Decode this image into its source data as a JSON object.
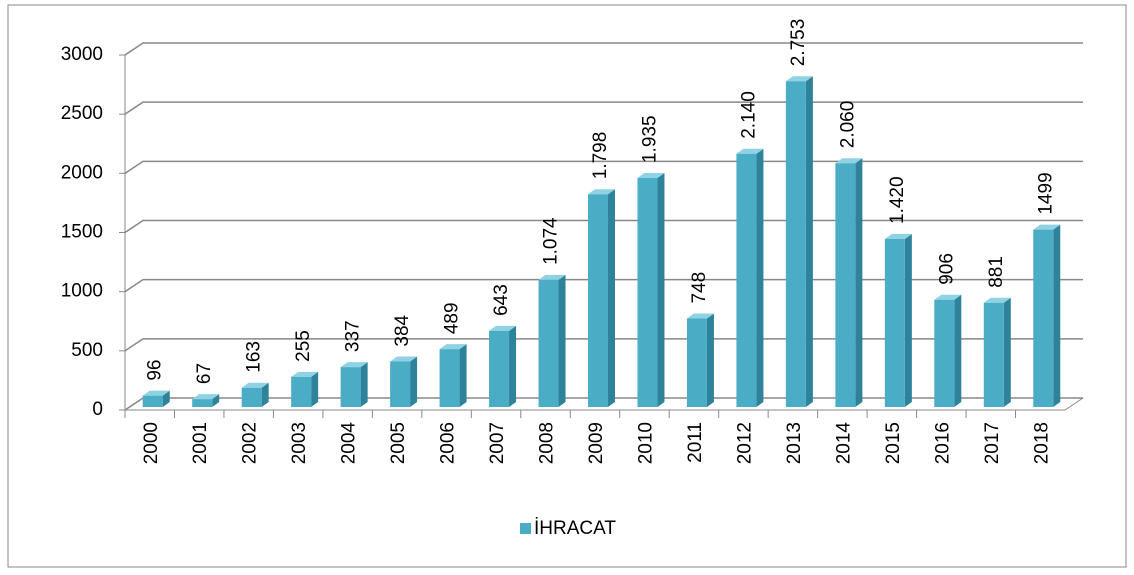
{
  "chart_data": {
    "type": "bar3d",
    "categories": [
      "2000",
      "2001",
      "2002",
      "2003",
      "2004",
      "2005",
      "2006",
      "2007",
      "2008",
      "2009",
      "2010",
      "2011",
      "2012",
      "2013",
      "2014",
      "2015",
      "2016",
      "2017",
      "2018"
    ],
    "series": [
      {
        "name": "İHRACAT",
        "color": "#4bacc6",
        "values": [
          96,
          67,
          163,
          255,
          337,
          384,
          489,
          643,
          1074,
          1798,
          1935,
          748,
          2140,
          2753,
          2060,
          1420,
          906,
          881,
          1499
        ],
        "value_labels": [
          "96",
          "67",
          "163",
          "255",
          "337",
          "384",
          "489",
          "643",
          "1.074",
          "1.798",
          "1.935",
          "748",
          "2.140",
          "2.753",
          "2.060",
          "1.420",
          "906",
          "881",
          "1499"
        ]
      }
    ],
    "ylim": [
      0,
      3000
    ],
    "yticks": [
      0,
      500,
      1000,
      1500,
      2000,
      2500,
      3000
    ],
    "grid": true,
    "legend": "bottom"
  }
}
